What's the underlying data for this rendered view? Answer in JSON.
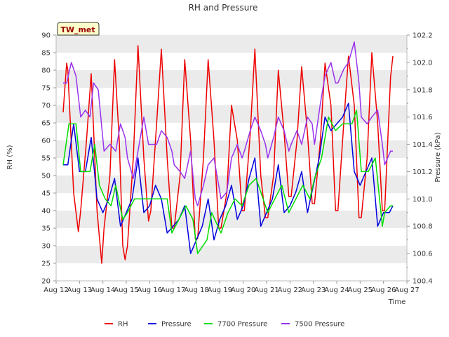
{
  "chart_data": {
    "type": "line",
    "title": "RH and Pressure",
    "station_label": "TW_met",
    "xlabel": "Time",
    "ylabel_left": "RH (%)",
    "ylabel_right": "Pressure (kPa)",
    "x_ticks": [
      "Aug 12",
      "Aug 13",
      "Aug 14",
      "Aug 15",
      "Aug 16",
      "Aug 17",
      "Aug 18",
      "Aug 19",
      "Aug 20",
      "Aug 21",
      "Aug 22",
      "Aug 23",
      "Aug 24",
      "Aug 25",
      "Aug 26",
      "Aug 27"
    ],
    "xlim_days": [
      12,
      27
    ],
    "ylim_left": [
      20,
      90
    ],
    "ylim_right": [
      100.4,
      102.2
    ],
    "y_ticks_left": [
      20,
      25,
      30,
      35,
      40,
      45,
      50,
      55,
      60,
      65,
      70,
      75,
      80,
      85,
      90
    ],
    "y_ticks_right": [
      "100.4",
      "100.6",
      "100.8",
      "101.0",
      "101.2",
      "101.4",
      "101.6",
      "101.8",
      "102.0",
      "102.2"
    ],
    "band_color": "#ebebeb",
    "series": [
      {
        "name": "RH",
        "color": "#ee0000",
        "axis": "left",
        "x": [
          12.3,
          12.45,
          12.5,
          12.75,
          12.95,
          13.05,
          13.3,
          13.5,
          13.75,
          13.95,
          14.05,
          14.3,
          14.5,
          14.7,
          14.85,
          14.95,
          15.05,
          15.3,
          15.5,
          15.75,
          15.95,
          16.05,
          16.3,
          16.5,
          16.75,
          16.95,
          17.05,
          17.3,
          17.5,
          17.75,
          17.95,
          18.05,
          18.3,
          18.5,
          18.75,
          18.95,
          19.05,
          19.3,
          19.5,
          19.75,
          19.95,
          20.05,
          20.3,
          20.5,
          20.75,
          20.95,
          21.05,
          21.3,
          21.5,
          21.75,
          21.95,
          22.05,
          22.3,
          22.5,
          22.75,
          22.95,
          23.05,
          23.3,
          23.5,
          23.75,
          23.95,
          24.05,
          24.3,
          24.5,
          24.75,
          24.95,
          25.05,
          25.3,
          25.5,
          25.75,
          25.95,
          26.05,
          26.3,
          26.4
        ],
        "y": [
          68,
          82,
          80,
          45,
          34,
          40,
          60,
          79,
          40,
          25,
          35,
          50,
          83,
          60,
          30,
          26,
          30,
          55,
          87,
          55,
          37,
          40,
          65,
          86,
          55,
          35,
          35,
          50,
          83,
          60,
          32,
          32,
          55,
          83,
          60,
          35,
          35,
          45,
          70,
          60,
          40,
          40,
          62,
          86,
          50,
          38,
          38,
          50,
          80,
          62,
          44,
          44,
          60,
          81,
          62,
          42,
          42,
          60,
          82,
          70,
          40,
          40,
          65,
          84,
          70,
          38,
          38,
          55,
          85,
          65,
          40,
          40,
          78,
          84
        ]
      },
      {
        "name": "Pressure",
        "color": "#0000dd",
        "axis": "right",
        "x": [
          12.3,
          12.5,
          12.75,
          13.0,
          13.25,
          13.5,
          13.75,
          14.0,
          14.25,
          14.5,
          14.75,
          15.0,
          15.25,
          15.5,
          15.75,
          16.0,
          16.25,
          16.5,
          16.75,
          17.0,
          17.25,
          17.5,
          17.75,
          18.0,
          18.25,
          18.5,
          18.75,
          19.0,
          19.25,
          19.5,
          19.75,
          20.0,
          20.25,
          20.5,
          20.75,
          21.0,
          21.25,
          21.5,
          21.75,
          22.0,
          22.25,
          22.5,
          22.75,
          23.0,
          23.25,
          23.5,
          23.75,
          24.0,
          24.25,
          24.5,
          24.75,
          25.0,
          25.25,
          25.5,
          25.75,
          26.0,
          26.25,
          26.4
        ],
        "y": [
          101.25,
          101.25,
          101.55,
          101.2,
          101.2,
          101.45,
          101.0,
          100.9,
          101.0,
          101.15,
          100.8,
          100.9,
          101.0,
          101.3,
          100.9,
          100.95,
          101.1,
          101.0,
          100.75,
          100.8,
          100.85,
          100.95,
          100.6,
          100.7,
          100.8,
          101.0,
          100.7,
          100.85,
          100.95,
          101.1,
          100.85,
          100.95,
          101.15,
          101.3,
          100.8,
          100.9,
          101.0,
          101.25,
          100.9,
          100.95,
          101.05,
          101.2,
          100.9,
          101.1,
          101.3,
          101.6,
          101.5,
          101.55,
          101.6,
          101.7,
          101.2,
          101.1,
          101.2,
          101.3,
          100.8,
          100.9,
          100.9,
          100.95
        ]
      },
      {
        "name": "7700 Pressure",
        "color": "#00dd00",
        "axis": "right",
        "x": [
          12.3,
          12.55,
          12.85,
          13.05,
          13.45,
          13.65,
          13.85,
          14.1,
          14.35,
          14.55,
          14.85,
          15.05,
          15.35,
          15.65,
          15.95,
          16.25,
          16.55,
          16.75,
          16.95,
          17.25,
          17.55,
          17.85,
          18.05,
          18.45,
          18.65,
          19.05,
          19.35,
          19.65,
          19.95,
          20.25,
          20.55,
          20.85,
          21.05,
          21.35,
          21.65,
          21.95,
          22.25,
          22.55,
          22.85,
          23.05,
          23.35,
          23.65,
          23.95,
          24.25,
          24.65,
          24.85,
          25.05,
          25.35,
          25.65,
          25.95,
          26.05,
          26.3,
          26.4
        ],
        "y": [
          101.25,
          101.55,
          101.55,
          101.2,
          101.2,
          101.4,
          101.1,
          101.0,
          100.95,
          101.1,
          100.85,
          100.9,
          101.0,
          101.0,
          101.0,
          101.0,
          101.0,
          101.0,
          100.75,
          100.85,
          100.95,
          100.85,
          100.6,
          100.7,
          100.9,
          100.75,
          100.9,
          101.0,
          100.95,
          101.1,
          101.15,
          101.0,
          100.9,
          101.0,
          101.1,
          100.9,
          101.0,
          101.1,
          101.0,
          101.15,
          101.3,
          101.6,
          101.5,
          101.55,
          101.55,
          101.65,
          101.2,
          101.2,
          101.3,
          100.8,
          100.9,
          100.95,
          100.95
        ]
      },
      {
        "name": "7500 Pressure",
        "color": "#9933ee",
        "axis": "right",
        "x": [
          12.3,
          12.45,
          12.65,
          12.85,
          13.05,
          13.25,
          13.45,
          13.6,
          13.8,
          14.05,
          14.3,
          14.55,
          14.75,
          14.95,
          15.05,
          15.3,
          15.5,
          15.75,
          15.95,
          16.05,
          16.3,
          16.5,
          16.75,
          16.95,
          17.05,
          17.3,
          17.5,
          17.75,
          17.95,
          18.05,
          18.3,
          18.5,
          18.75,
          18.95,
          19.05,
          19.3,
          19.5,
          19.75,
          19.95,
          20.05,
          20.3,
          20.5,
          20.75,
          20.95,
          21.05,
          21.3,
          21.5,
          21.75,
          21.95,
          22.05,
          22.3,
          22.5,
          22.75,
          22.95,
          23.05,
          23.3,
          23.5,
          23.75,
          23.95,
          24.05,
          24.3,
          24.5,
          24.75,
          24.95,
          25.05,
          25.3,
          25.5,
          25.75,
          25.95,
          26.05,
          26.3,
          26.4
        ],
        "y": [
          101.85,
          101.85,
          102.0,
          101.9,
          101.6,
          101.65,
          101.6,
          101.85,
          101.8,
          101.35,
          101.4,
          101.35,
          101.55,
          101.45,
          101.3,
          101.15,
          101.35,
          101.6,
          101.4,
          101.4,
          101.4,
          101.5,
          101.45,
          101.35,
          101.25,
          101.2,
          101.15,
          101.35,
          101.0,
          100.95,
          101.1,
          101.25,
          101.3,
          101.1,
          101.0,
          101.05,
          101.3,
          101.4,
          101.3,
          101.35,
          101.5,
          101.6,
          101.5,
          101.4,
          101.3,
          101.45,
          101.6,
          101.5,
          101.35,
          101.4,
          101.5,
          101.4,
          101.6,
          101.55,
          101.4,
          101.7,
          101.9,
          102.0,
          101.85,
          101.85,
          101.95,
          102.0,
          102.15,
          101.85,
          101.6,
          101.55,
          101.6,
          101.65,
          101.4,
          101.25,
          101.35,
          101.35
        ]
      }
    ]
  }
}
